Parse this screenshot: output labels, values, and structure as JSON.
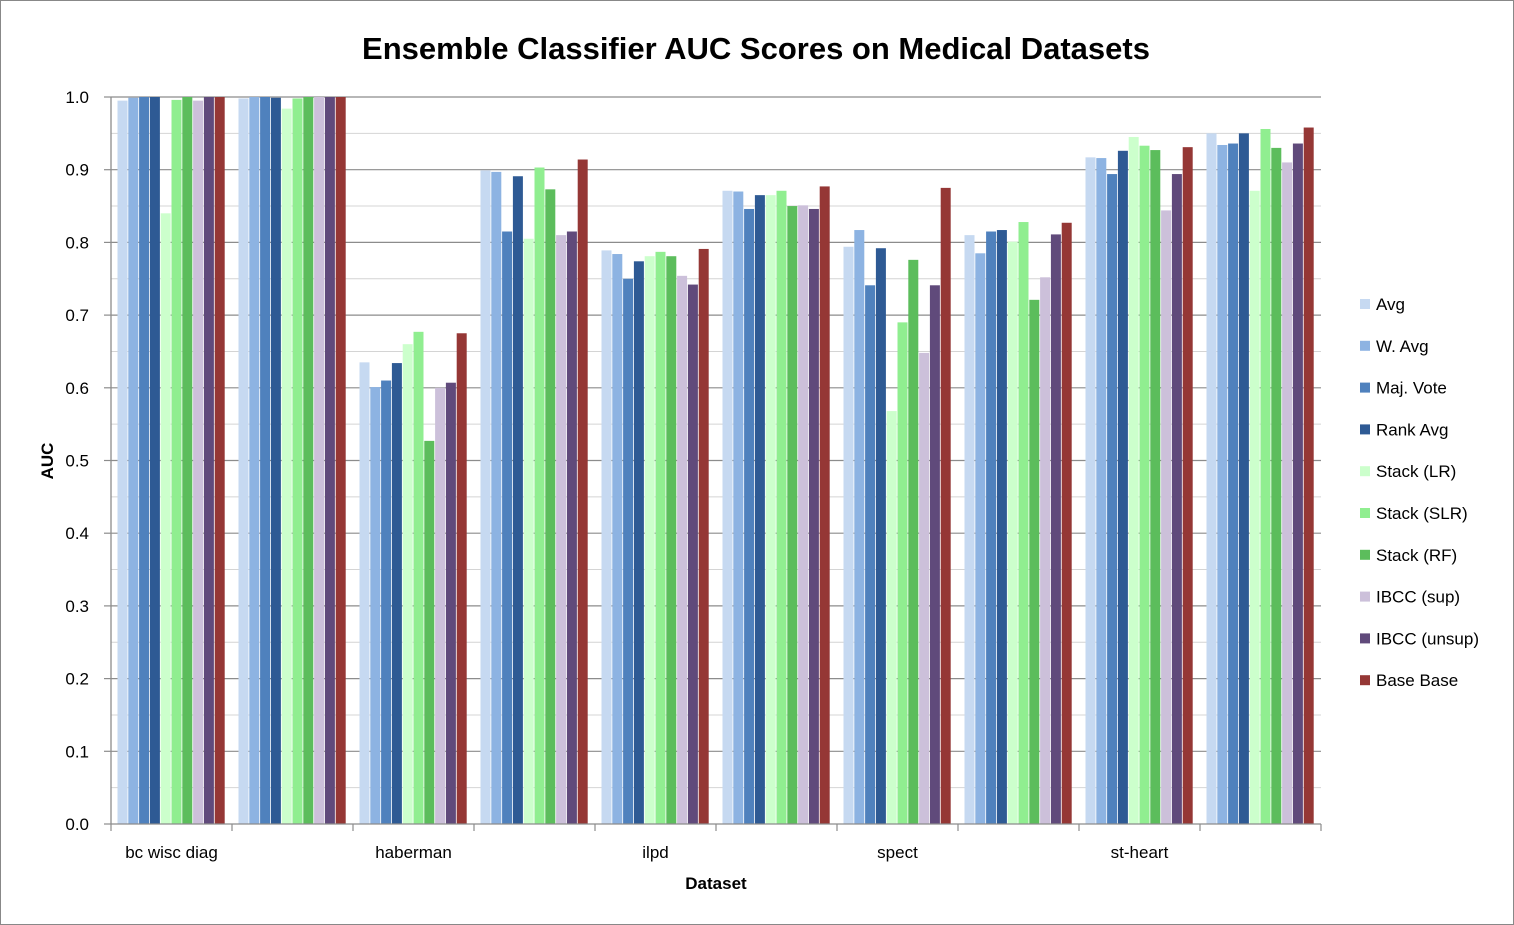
{
  "chart_data": {
    "type": "bar",
    "title": "Ensemble Classifier AUC Scores on Medical Datasets",
    "xlabel": "Dataset",
    "ylabel": "AUC",
    "ylim": [
      0,
      1.0
    ],
    "yticks": [
      "0.0",
      "0.1",
      "0.2",
      "0.3",
      "0.4",
      "0.5",
      "0.6",
      "0.7",
      "0.8",
      "0.9",
      "1.0"
    ],
    "grid": true,
    "legend_position": "right",
    "categories": [
      "bc wisc diag",
      "",
      "haberman",
      "",
      "ilpd",
      "",
      "spect",
      "",
      "st-heart",
      ""
    ],
    "series": [
      {
        "name": "Avg",
        "color": "#c6d9f1",
        "values": [
          0.995,
          0.998,
          0.635,
          0.899,
          0.789,
          0.871,
          0.794,
          0.81,
          0.917,
          0.95
        ]
      },
      {
        "name": "W. Avg",
        "color": "#8db3e2",
        "values": [
          0.999,
          1.0,
          0.601,
          0.897,
          0.784,
          0.87,
          0.817,
          0.785,
          0.916,
          0.934
        ]
      },
      {
        "name": "Maj. Vote",
        "color": "#4f81bd",
        "values": [
          1.0,
          1.0,
          0.61,
          0.815,
          0.75,
          0.846,
          0.741,
          0.815,
          0.894,
          0.936
        ]
      },
      {
        "name": "Rank Avg",
        "color": "#2e5a94",
        "values": [
          1.0,
          0.999,
          0.634,
          0.891,
          0.774,
          0.865,
          0.792,
          0.817,
          0.926,
          0.95
        ]
      },
      {
        "name": "Stack (LR)",
        "color": "#ccffcc",
        "values": [
          0.84,
          0.984,
          0.66,
          0.805,
          0.781,
          0.865,
          0.568,
          0.801,
          0.945,
          0.871
        ]
      },
      {
        "name": "Stack (SLR)",
        "color": "#90ee90",
        "values": [
          0.996,
          0.998,
          0.677,
          0.903,
          0.787,
          0.871,
          0.69,
          0.828,
          0.933,
          0.956
        ]
      },
      {
        "name": "Stack (RF)",
        "color": "#5cbd5c",
        "values": [
          1.0,
          1.0,
          0.527,
          0.873,
          0.781,
          0.85,
          0.776,
          0.721,
          0.927,
          0.93
        ]
      },
      {
        "name": "IBCC (sup)",
        "color": "#ccc0da",
        "values": [
          0.995,
          1.0,
          0.6,
          0.81,
          0.754,
          0.851,
          0.648,
          0.752,
          0.844,
          0.91
        ]
      },
      {
        "name": "IBCC (unsup)",
        "color": "#604a7b",
        "values": [
          1.0,
          1.0,
          0.607,
          0.815,
          0.742,
          0.846,
          0.741,
          0.811,
          0.894,
          0.936
        ]
      },
      {
        "name": "Base Base",
        "color": "#953735",
        "values": [
          1.0,
          1.0,
          0.675,
          0.914,
          0.791,
          0.877,
          0.875,
          0.827,
          0.931,
          0.958
        ]
      }
    ]
  }
}
